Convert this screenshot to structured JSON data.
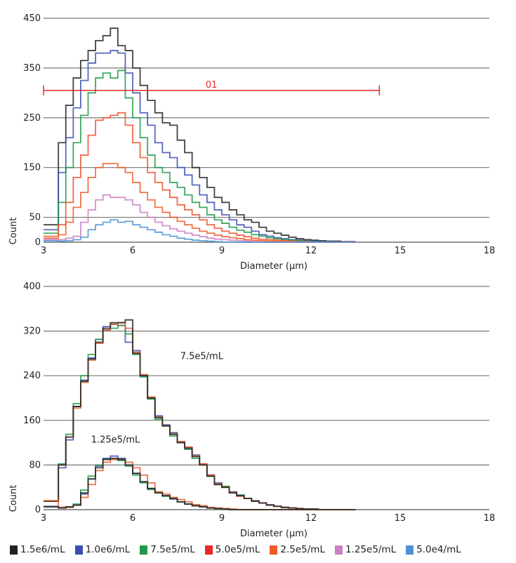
{
  "legend": [
    {
      "label": "1.5e6/mL",
      "color": "#222222"
    },
    {
      "label": "1.0e6/mL",
      "color": "#3a4fb0"
    },
    {
      "label": "7.5e5/mL",
      "color": "#1e9a4a"
    },
    {
      "label": "5.0e5/mL",
      "color": "#e8262a"
    },
    {
      "label": "2.5e5/mL",
      "color": "#f05a28"
    },
    {
      "label": "1.25e5/mL",
      "color": "#c97fc4"
    },
    {
      "label": "5.0e4/mL",
      "color": "#4a92d4"
    }
  ],
  "chart_data": [
    {
      "type": "line",
      "style": "step histogram",
      "xlabel": "Diameter (µm)",
      "ylabel": "Count",
      "xlim": [
        3,
        18
      ],
      "ylim": [
        0,
        450
      ],
      "xticks": [
        "3",
        "6",
        "9",
        "12",
        "15",
        "18"
      ],
      "yticks": [
        "0",
        "50",
        "150",
        "250",
        "350",
        "450"
      ],
      "grid": "horizontal",
      "annotations": [
        {
          "type": "range-bar",
          "label": "01",
          "x_start": 3,
          "x_end": 14.3,
          "y": 305,
          "color": "#e8262a"
        }
      ],
      "x": [
        3.0,
        3.25,
        3.5,
        3.75,
        4.0,
        4.25,
        4.5,
        4.75,
        5.0,
        5.25,
        5.5,
        5.75,
        6.0,
        6.25,
        6.5,
        6.75,
        7.0,
        7.25,
        7.5,
        7.75,
        8.0,
        8.25,
        8.5,
        8.75,
        9.0,
        9.25,
        9.5,
        9.75,
        10.0,
        10.25,
        10.5,
        10.75,
        11.0,
        11.25,
        11.5,
        11.75,
        12.0,
        12.25,
        12.5,
        12.75,
        13.0,
        13.25
      ],
      "series": [
        {
          "name": "1.5e6/mL",
          "color": "#222222",
          "values": [
            35,
            35,
            200,
            275,
            330,
            365,
            385,
            405,
            415,
            430,
            395,
            385,
            350,
            315,
            285,
            260,
            240,
            235,
            205,
            180,
            150,
            130,
            110,
            90,
            80,
            65,
            55,
            45,
            40,
            30,
            22,
            18,
            14,
            10,
            7,
            5,
            4,
            3,
            2,
            2,
            1,
            1
          ]
        },
        {
          "name": "1.0e6/mL",
          "color": "#3a4fb0",
          "values": [
            25,
            25,
            140,
            210,
            270,
            325,
            360,
            380,
            380,
            385,
            380,
            340,
            300,
            260,
            235,
            200,
            180,
            170,
            150,
            135,
            115,
            95,
            80,
            65,
            55,
            45,
            35,
            30,
            22,
            15,
            12,
            9,
            7,
            5,
            4,
            3,
            2,
            1,
            1,
            0,
            0,
            0
          ]
        },
        {
          "name": "7.5e5/mL",
          "color": "#1e9a4a",
          "values": [
            18,
            18,
            80,
            150,
            200,
            255,
            300,
            330,
            340,
            330,
            345,
            290,
            250,
            210,
            175,
            150,
            140,
            120,
            110,
            95,
            80,
            70,
            55,
            45,
            38,
            30,
            24,
            20,
            15,
            12,
            9,
            7,
            5,
            4,
            3,
            2,
            1,
            1,
            0,
            0,
            0,
            0
          ]
        },
        {
          "name": "5.0e5/mL",
          "color": "#f0502a",
          "values": [
            12,
            12,
            35,
            80,
            130,
            175,
            215,
            245,
            250,
            255,
            260,
            235,
            200,
            170,
            140,
            120,
            105,
            90,
            75,
            65,
            55,
            45,
            35,
            28,
            22,
            18,
            14,
            11,
            8,
            6,
            5,
            4,
            3,
            2,
            1,
            1,
            0,
            0,
            0,
            0,
            0,
            0
          ]
        },
        {
          "name": "2.5e5/mL",
          "color": "#f05a28",
          "values": [
            8,
            8,
            15,
            40,
            70,
            100,
            130,
            150,
            158,
            158,
            150,
            140,
            120,
            100,
            85,
            70,
            60,
            50,
            42,
            35,
            28,
            22,
            18,
            14,
            11,
            9,
            7,
            5,
            4,
            3,
            2,
            2,
            1,
            0,
            0,
            0,
            0,
            0,
            0,
            0,
            0,
            0
          ]
        },
        {
          "name": "1.25e5/mL",
          "color": "#c97fc4",
          "values": [
            5,
            5,
            5,
            8,
            12,
            40,
            65,
            85,
            95,
            90,
            90,
            85,
            75,
            60,
            50,
            40,
            33,
            27,
            22,
            18,
            14,
            11,
            8,
            6,
            5,
            4,
            3,
            2,
            1,
            0,
            0,
            0,
            0,
            0,
            0,
            0,
            0,
            0,
            0,
            0,
            0,
            0
          ]
        },
        {
          "name": "5.0e4/mL",
          "color": "#4a92d4",
          "values": [
            3,
            3,
            2,
            3,
            5,
            10,
            25,
            35,
            40,
            45,
            40,
            42,
            35,
            30,
            25,
            20,
            15,
            12,
            8,
            6,
            4,
            3,
            2,
            1,
            0,
            0,
            0,
            0,
            0,
            0,
            0,
            0,
            0,
            0,
            0,
            0,
            0,
            0,
            0,
            0,
            0,
            0
          ]
        }
      ]
    },
    {
      "type": "line",
      "style": "step histogram",
      "xlabel": "Diameter (µm)",
      "ylabel": "Count",
      "xlim": [
        3,
        18
      ],
      "ylim": [
        0,
        400
      ],
      "xticks": [
        "3",
        "6",
        "9",
        "12",
        "15",
        "18"
      ],
      "yticks": [
        "0",
        "80",
        "160",
        "240",
        "320",
        "400"
      ],
      "grid": "horizontal",
      "annotations": [
        {
          "type": "text",
          "label": "7.5e5/mL",
          "x": 7.6,
          "y": 270
        },
        {
          "type": "text",
          "label": "1.25e5/mL",
          "x": 4.6,
          "y": 120
        }
      ],
      "x": [
        3.0,
        3.25,
        3.5,
        3.75,
        4.0,
        4.25,
        4.5,
        4.75,
        5.0,
        5.25,
        5.5,
        5.75,
        6.0,
        6.25,
        6.5,
        6.75,
        7.0,
        7.25,
        7.5,
        7.75,
        8.0,
        8.25,
        8.5,
        8.75,
        9.0,
        9.25,
        9.5,
        9.75,
        10.0,
        10.25,
        10.5,
        10.75,
        11.0,
        11.25,
        11.5,
        11.75,
        12.0,
        12.25,
        12.5,
        12.75,
        13.0,
        13.25
      ],
      "series": [
        {
          "name": "1.0e6/mL",
          "color": "#3a4fb0",
          "values": [
            15,
            15,
            75,
            125,
            185,
            232,
            272,
            305,
            328,
            332,
            330,
            300,
            285,
            240,
            200,
            168,
            152,
            138,
            122,
            112,
            98,
            82,
            62,
            48,
            40,
            32,
            26,
            20,
            16,
            12,
            9,
            6,
            4,
            3,
            2,
            1,
            1,
            0,
            0,
            0,
            0,
            0
          ]
        },
        {
          "name": "7.5e5/mL",
          "color": "#1e9a4a",
          "values": [
            16,
            16,
            82,
            135,
            190,
            240,
            278,
            305,
            322,
            325,
            330,
            315,
            278,
            238,
            198,
            162,
            150,
            132,
            120,
            108,
            92,
            80,
            60,
            45,
            42,
            30,
            26,
            20,
            15,
            12,
            8,
            6,
            4,
            3,
            2,
            1,
            1,
            0,
            0,
            0,
            0,
            0
          ]
        },
        {
          "name": "2.5e5/mL",
          "color": "#f05a28",
          "values": [
            15,
            15,
            80,
            130,
            182,
            228,
            268,
            298,
            322,
            332,
            335,
            325,
            282,
            242,
            202,
            166,
            150,
            136,
            122,
            112,
            96,
            82,
            62,
            46,
            40,
            31,
            24,
            20,
            15,
            12,
            8,
            6,
            4,
            3,
            2,
            1,
            1,
            0,
            0,
            0,
            0,
            0
          ]
        },
        {
          "name": "1.5e6/mL",
          "color": "#222222",
          "values": [
            15,
            15,
            80,
            130,
            185,
            230,
            270,
            300,
            325,
            335,
            335,
            340,
            280,
            240,
            200,
            165,
            150,
            135,
            120,
            110,
            95,
            80,
            60,
            45,
            40,
            30,
            25,
            20,
            15,
            12,
            8,
            6,
            4,
            3,
            2,
            1,
            1,
            0,
            0,
            0,
            0,
            0
          ]
        },
        {
          "name": "1.0e6/mL",
          "color": "#3a4fb0",
          "values": [
            6,
            6,
            4,
            5,
            8,
            28,
            55,
            78,
            92,
            96,
            92,
            80,
            65,
            50,
            38,
            30,
            25,
            19,
            14,
            10,
            7,
            5,
            3,
            2,
            1,
            0,
            0,
            0,
            0,
            0,
            0,
            0,
            0,
            0,
            0,
            0,
            0,
            0,
            0,
            0,
            0,
            0
          ]
        },
        {
          "name": "7.5e5/mL",
          "color": "#1e9a4a",
          "values": [
            5,
            5,
            3,
            5,
            10,
            35,
            60,
            80,
            90,
            90,
            88,
            78,
            62,
            48,
            36,
            30,
            24,
            20,
            14,
            10,
            7,
            5,
            3,
            2,
            1,
            0,
            0,
            0,
            0,
            0,
            0,
            0,
            0,
            0,
            0,
            0,
            0,
            0,
            0,
            0,
            0,
            0
          ]
        },
        {
          "name": "2.5e5/mL",
          "color": "#f05a28",
          "values": [
            16,
            16,
            4,
            4,
            8,
            22,
            45,
            70,
            85,
            90,
            90,
            85,
            75,
            62,
            48,
            32,
            28,
            22,
            18,
            14,
            9,
            7,
            4,
            3,
            2,
            1,
            0,
            0,
            0,
            0,
            0,
            0,
            0,
            0,
            0,
            0,
            0,
            0,
            0,
            0,
            0,
            0
          ]
        },
        {
          "name": "1.5e6/mL",
          "color": "#222222",
          "values": [
            5,
            5,
            3,
            5,
            8,
            30,
            55,
            75,
            90,
            92,
            90,
            80,
            65,
            50,
            38,
            30,
            25,
            20,
            14,
            10,
            7,
            5,
            3,
            2,
            1,
            0,
            0,
            0,
            0,
            0,
            0,
            0,
            0,
            0,
            0,
            0,
            0,
            0,
            0,
            0,
            0,
            0
          ]
        }
      ]
    }
  ]
}
